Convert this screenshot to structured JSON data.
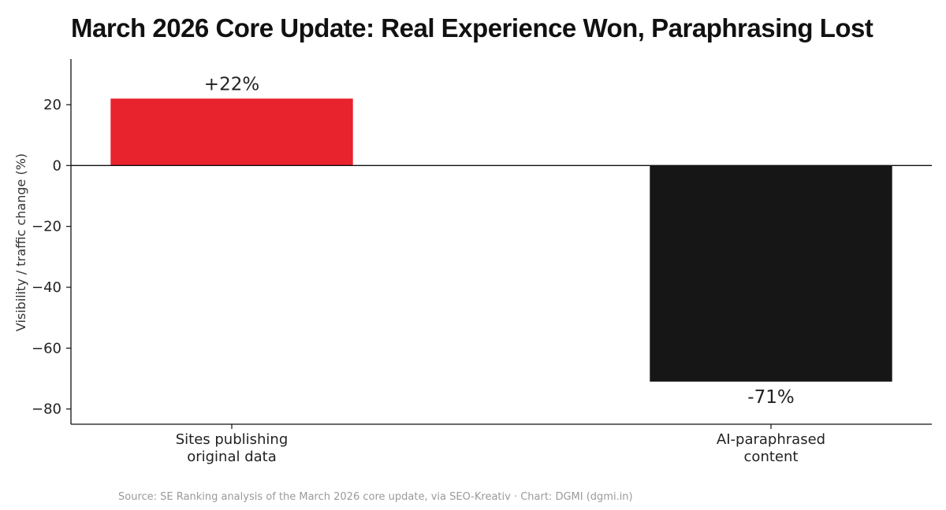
{
  "colors": {
    "positive": "#e8232e",
    "negative": "#161616",
    "axis": "#111111",
    "source_text": "#9a9a9a"
  },
  "source": "Source: SE Ranking analysis of the March 2026 core update, via SEO-Kreativ · Chart: DGMI (dgmi.in)",
  "chart_data": {
    "type": "bar",
    "title": "March 2026 Core Update: Real Experience Won, Paraphrasing Lost",
    "xlabel": "",
    "ylabel": "Visibility / traffic change (%)",
    "categories": [
      "Sites publishing\noriginal data",
      "AI-paraphrased\ncontent"
    ],
    "values": [
      22,
      -71
    ],
    "value_labels": [
      "+22%",
      "-71%"
    ],
    "ylim": [
      -85,
      35
    ],
    "yticks": [
      20,
      0,
      -20,
      -40,
      -60,
      -80
    ],
    "ytick_labels": [
      "20",
      "0",
      "−20",
      "−40",
      "−60",
      "−80"
    ],
    "grid": false,
    "legend": "none"
  }
}
